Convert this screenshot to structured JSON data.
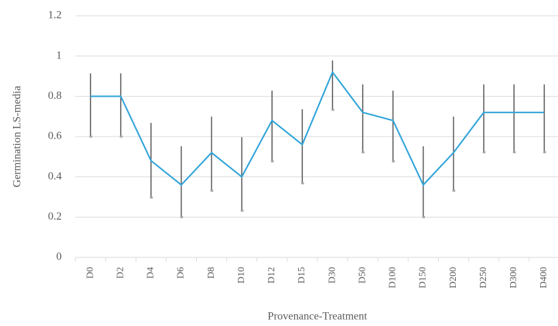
{
  "chart_data": {
    "type": "line",
    "x_label": "Provenance-Treatment",
    "y_label": "Germination LS-media",
    "categories": [
      "D0",
      "D2",
      "D4",
      "D6",
      "D8",
      "D10",
      "D12",
      "D15",
      "D30",
      "D50",
      "D100",
      "D150",
      "D200",
      "D250",
      "D300",
      "D400"
    ],
    "series": [
      {
        "color": "#2fa4d9",
        "values": [
          0.8,
          0.8,
          0.48,
          0.36,
          0.52,
          0.4,
          0.68,
          0.56,
          0.92,
          0.72,
          0.68,
          0.36,
          0.52,
          0.72,
          0.72,
          0.72
        ],
        "error_high": [
          0.914,
          0.914,
          0.668,
          0.552,
          0.699,
          0.597,
          0.828,
          0.736,
          0.978,
          0.859,
          0.828,
          0.552,
          0.699,
          0.859,
          0.859,
          0.859
        ],
        "error_low": [
          0.6,
          0.6,
          0.297,
          0.2,
          0.331,
          0.232,
          0.477,
          0.368,
          0.733,
          0.522,
          0.477,
          0.2,
          0.331,
          0.522,
          0.522,
          0.522
        ]
      }
    ],
    "error_color": "#595959",
    "ylim": [
      0,
      1.2
    ],
    "yticks": [
      0,
      0.2,
      0.4,
      0.6,
      0.8,
      1,
      1.2
    ],
    "grid": true
  }
}
